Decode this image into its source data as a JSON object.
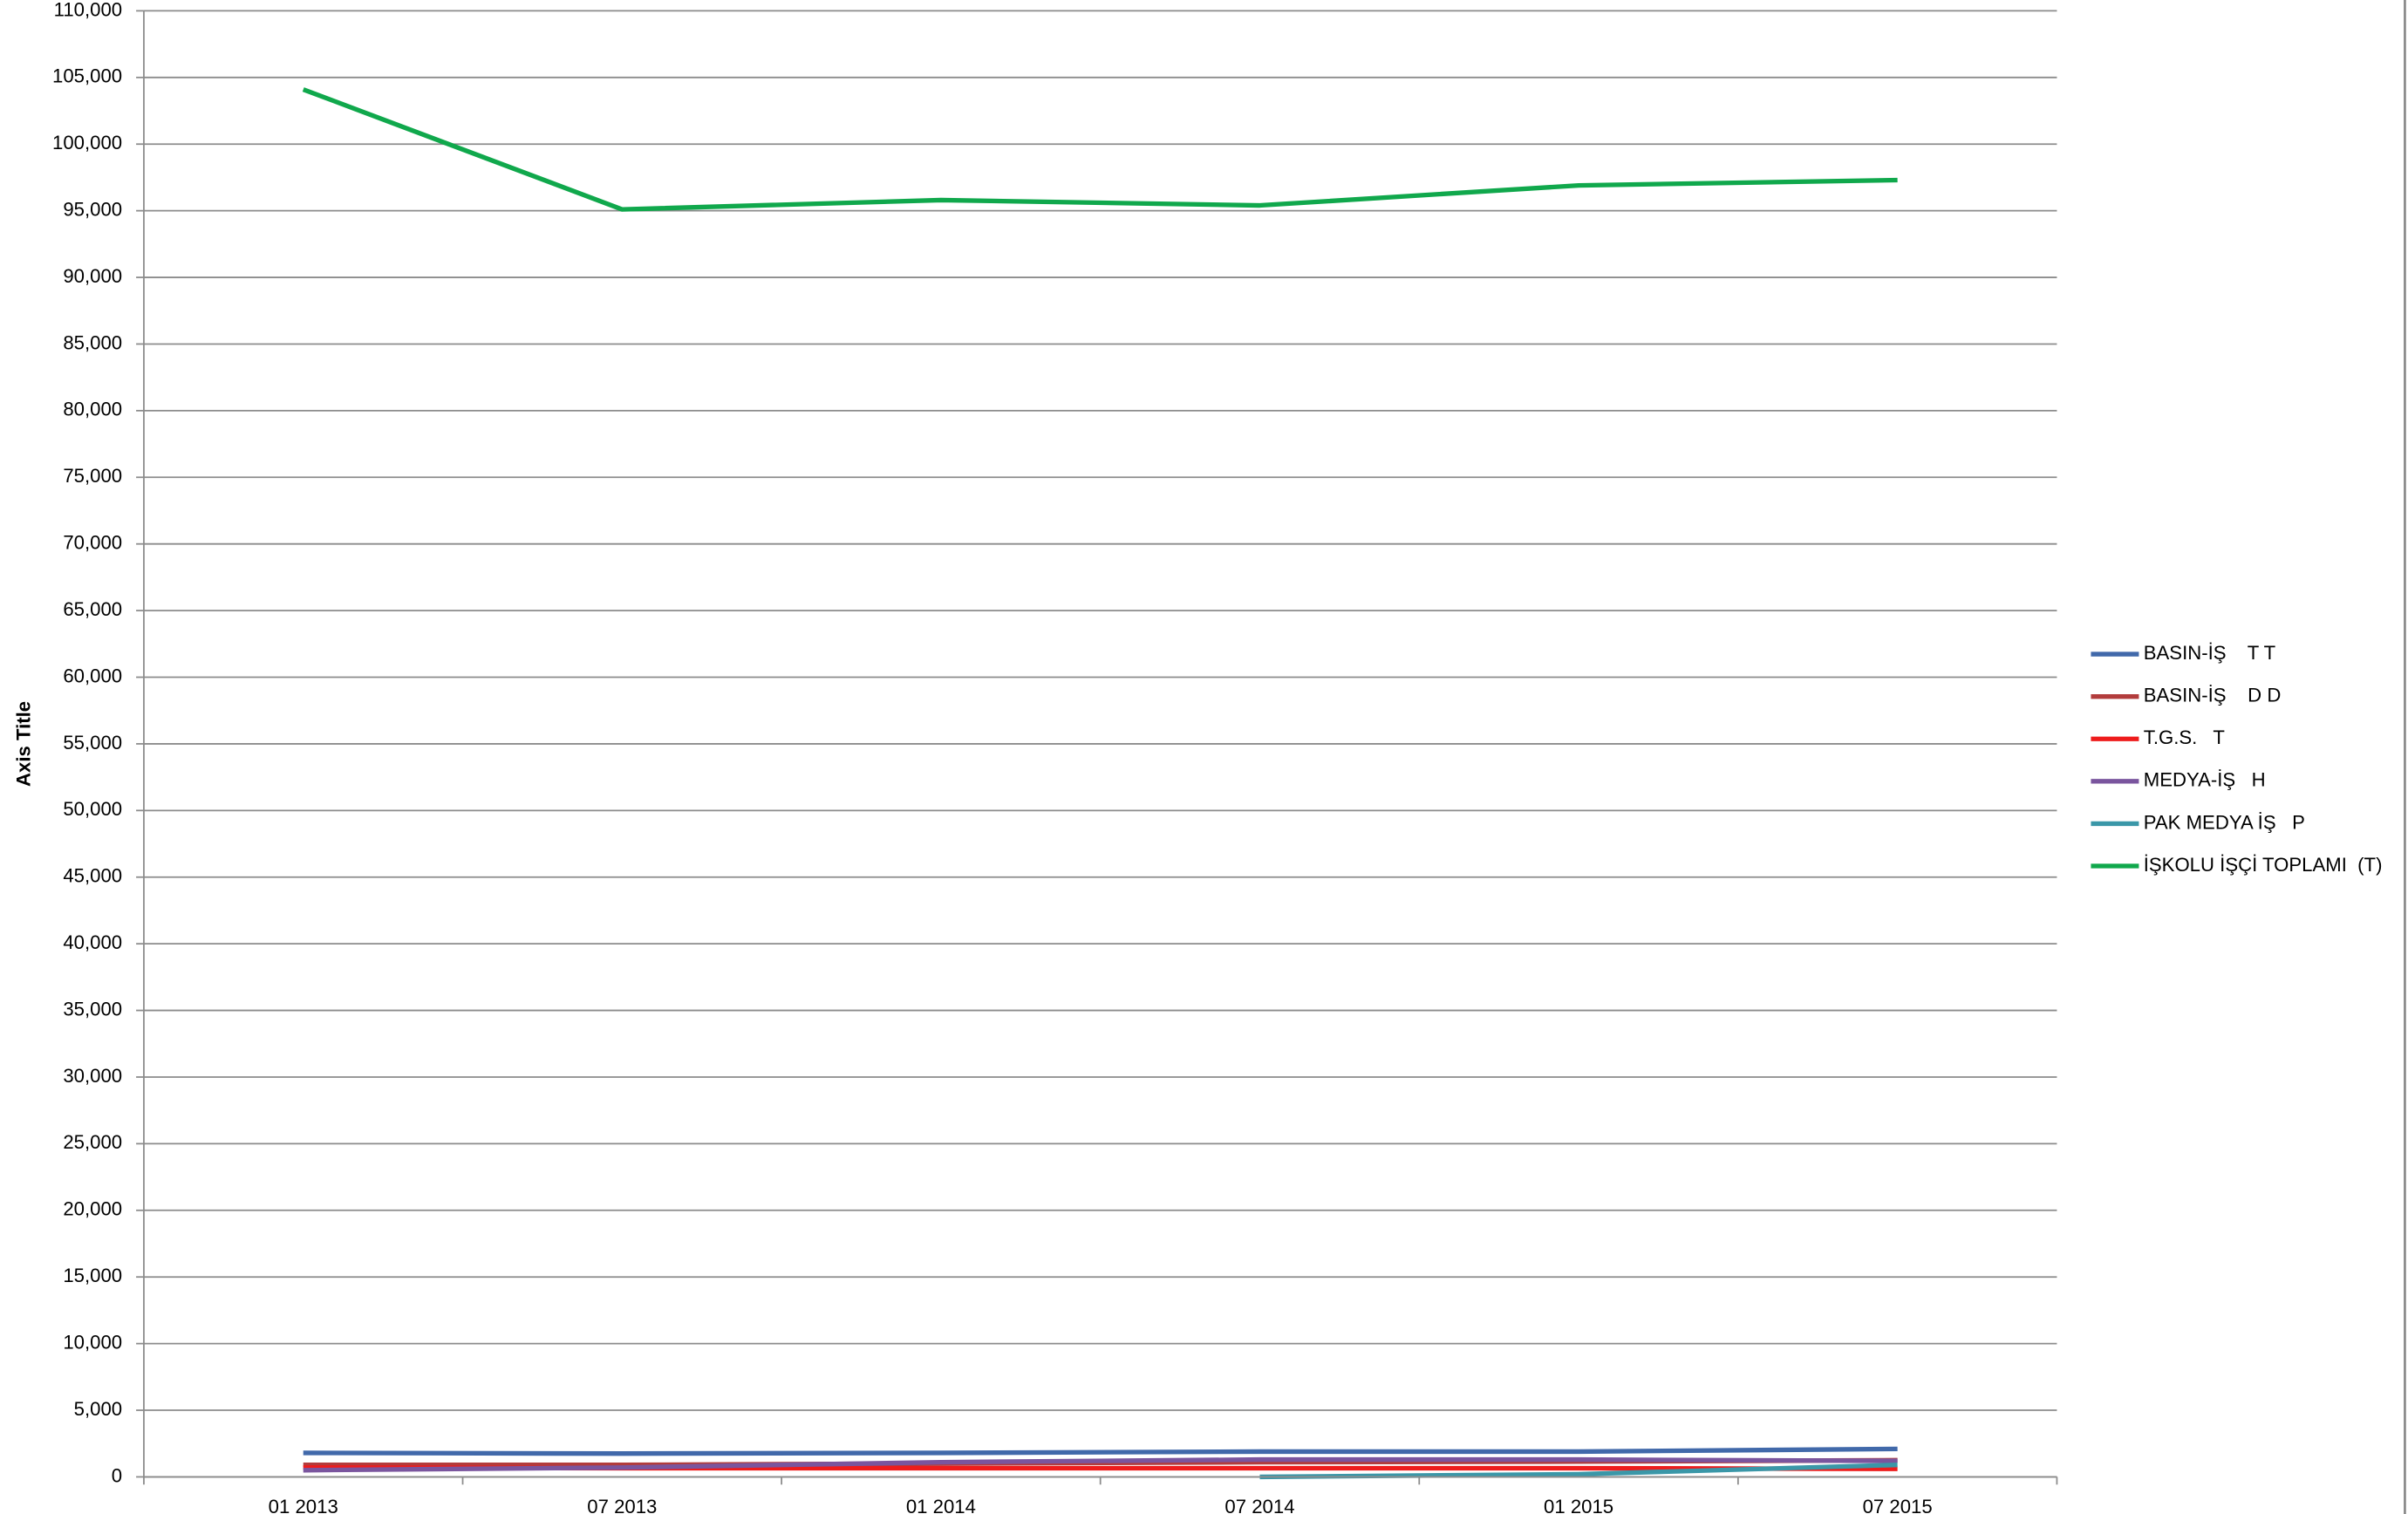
{
  "chart_data": {
    "type": "line",
    "y_axis_label": "Axis Title",
    "categories": [
      "01 2013",
      "07 2013",
      "01 2014",
      "07 2014",
      "01 2015",
      "07 2015"
    ],
    "series": [
      {
        "name": "BASIN-İŞ    T T",
        "color": "#4169aa",
        "values": [
          1800,
          1750,
          1800,
          1900,
          1900,
          2100
        ]
      },
      {
        "name": "BASIN-İŞ    D D",
        "color": "#b23c3c",
        "values": [
          900,
          900,
          1000,
          1100,
          1150,
          1250
        ]
      },
      {
        "name": "T.G.S.   T",
        "color": "#ee1c1c",
        "values": [
          700,
          650,
          650,
          650,
          650,
          600
        ]
      },
      {
        "name": "MEDYA-İŞ   H",
        "color": "#7a559e",
        "values": [
          500,
          700,
          1100,
          1300,
          1300,
          1200
        ]
      },
      {
        "name": "PAK MEDYA İŞ   P",
        "color": "#3a97a8",
        "values": [
          null,
          null,
          null,
          0,
          200,
          900
        ]
      },
      {
        "name": "İŞKOLU İŞÇİ TOPLAMI  (T)",
        "color": "#10a84c",
        "values": [
          104100,
          95100,
          95800,
          95400,
          96900,
          97300
        ]
      }
    ],
    "ylim": [
      0,
      110000
    ],
    "yticks": [
      0,
      {
        "value": 5000,
        "label": "5,000"
      },
      {
        "value": 10000,
        "label": "10,000"
      },
      {
        "value": 15000,
        "label": "15,000"
      },
      {
        "value": 20000,
        "label": "20,000"
      },
      {
        "value": 25000,
        "label": "25,000"
      },
      {
        "value": 30000,
        "label": "30,000"
      },
      {
        "value": 35000,
        "label": "35,000"
      },
      {
        "value": 40000,
        "label": "40,000"
      },
      {
        "value": 45000,
        "label": "45,000"
      },
      {
        "value": 50000,
        "label": "50,000"
      },
      {
        "value": 55000,
        "label": "55,000"
      },
      {
        "value": 60000,
        "label": "60,000"
      },
      {
        "value": 65000,
        "label": "65,000"
      },
      {
        "value": 70000,
        "label": "70,000"
      },
      {
        "value": 75000,
        "label": "75,000"
      },
      {
        "value": 80000,
        "label": "80,000"
      },
      {
        "value": 85000,
        "label": "85,000"
      },
      {
        "value": 90000,
        "label": "90,000"
      },
      {
        "value": 95000,
        "label": "95,000"
      },
      {
        "value": 100000,
        "label": "100,000"
      },
      {
        "value": 105000,
        "label": "105,000"
      },
      {
        "value": 110000,
        "label": "110,000"
      }
    ],
    "grid": true,
    "legend": "right"
  }
}
